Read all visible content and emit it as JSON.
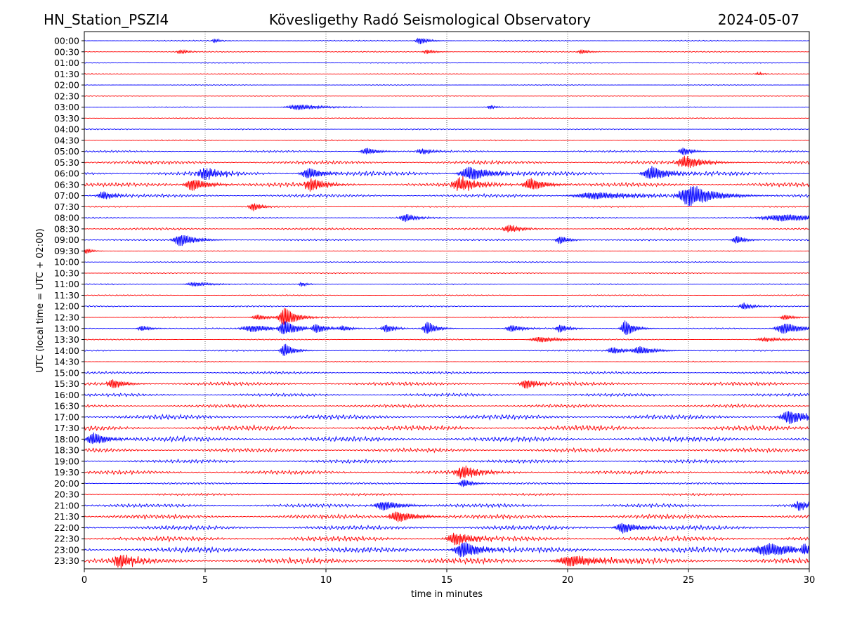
{
  "chart_data": {
    "type": "line",
    "title_left": "HN_Station_PSZI4",
    "title_center": "Kövesligethy Radó Seismological Observatory",
    "title_right": "2024-05-07",
    "xlabel": "time in minutes",
    "ylabel": "UTC (local time = UTC + 02:00)",
    "xlim": [
      0,
      30
    ],
    "xticks": [
      "0",
      "5",
      "10",
      "15",
      "20",
      "25",
      "30"
    ],
    "grid": "vertical dotted at every 5 minutes",
    "colors": {
      "even_trace": "#0000ff",
      "odd_trace": "#ff0000",
      "grid": "#000000"
    },
    "rows": [
      {
        "label": "00:00",
        "noise": 0.8,
        "events": [
          {
            "t": 13.9,
            "amp": 5,
            "dur": 0.3
          },
          {
            "t": 5.4,
            "amp": 3,
            "dur": 0.2
          }
        ]
      },
      {
        "label": "00:30",
        "noise": 0.8,
        "events": [
          {
            "t": 4.0,
            "amp": 3,
            "dur": 0.3
          },
          {
            "t": 14.2,
            "amp": 3,
            "dur": 0.3
          },
          {
            "t": 20.6,
            "amp": 3,
            "dur": 0.3
          }
        ]
      },
      {
        "label": "01:00",
        "noise": 0.7,
        "events": []
      },
      {
        "label": "01:30",
        "noise": 0.7,
        "events": [
          {
            "t": 27.9,
            "amp": 2,
            "dur": 0.2
          }
        ]
      },
      {
        "label": "02:00",
        "noise": 0.6,
        "events": []
      },
      {
        "label": "02:30",
        "noise": 0.5,
        "events": []
      },
      {
        "label": "03:00",
        "noise": 0.6,
        "events": [
          {
            "t": 8.9,
            "amp": 4,
            "dur": 0.8
          },
          {
            "t": 16.8,
            "amp": 3,
            "dur": 0.2
          }
        ]
      },
      {
        "label": "03:30",
        "noise": 0.7,
        "events": []
      },
      {
        "label": "04:00",
        "noise": 0.9,
        "events": []
      },
      {
        "label": "04:30",
        "noise": 0.9,
        "events": []
      },
      {
        "label": "05:00",
        "noise": 1.4,
        "events": [
          {
            "t": 11.7,
            "amp": 5,
            "dur": 0.4
          },
          {
            "t": 14.0,
            "amp": 4,
            "dur": 0.4
          },
          {
            "t": 24.8,
            "amp": 6,
            "dur": 0.3
          }
        ]
      },
      {
        "label": "05:30",
        "noise": 2.6,
        "events": [
          {
            "t": 24.9,
            "amp": 9,
            "dur": 0.6
          }
        ]
      },
      {
        "label": "06:00",
        "noise": 3.2,
        "events": [
          {
            "t": 5.0,
            "amp": 9,
            "dur": 0.5
          },
          {
            "t": 9.3,
            "amp": 8,
            "dur": 0.5
          },
          {
            "t": 16.0,
            "amp": 10,
            "dur": 0.7
          },
          {
            "t": 23.5,
            "amp": 10,
            "dur": 0.6
          }
        ]
      },
      {
        "label": "06:30",
        "noise": 3.0,
        "events": [
          {
            "t": 4.5,
            "amp": 9,
            "dur": 0.5
          },
          {
            "t": 9.4,
            "amp": 9,
            "dur": 0.5
          },
          {
            "t": 15.6,
            "amp": 10,
            "dur": 0.6
          },
          {
            "t": 18.5,
            "amp": 9,
            "dur": 0.5
          }
        ]
      },
      {
        "label": "07:00",
        "noise": 2.4,
        "events": [
          {
            "t": 0.8,
            "amp": 6,
            "dur": 0.4
          },
          {
            "t": 25.1,
            "amp": 16,
            "dur": 0.8
          },
          {
            "t": 21.2,
            "amp": 5,
            "dur": 1.5
          }
        ]
      },
      {
        "label": "07:30",
        "noise": 0.9,
        "events": [
          {
            "t": 7.0,
            "amp": 6,
            "dur": 0.3
          }
        ]
      },
      {
        "label": "08:00",
        "noise": 1.0,
        "events": [
          {
            "t": 13.3,
            "amp": 6,
            "dur": 0.4
          },
          {
            "t": 29.0,
            "amp": 5,
            "dur": 1.6
          }
        ]
      },
      {
        "label": "08:30",
        "noise": 1.6,
        "events": [
          {
            "t": 17.6,
            "amp": 6,
            "dur": 0.4
          }
        ]
      },
      {
        "label": "09:00",
        "noise": 1.2,
        "events": [
          {
            "t": 4.0,
            "amp": 9,
            "dur": 0.5
          },
          {
            "t": 19.7,
            "amp": 6,
            "dur": 0.3
          },
          {
            "t": 27.0,
            "amp": 6,
            "dur": 0.3
          }
        ]
      },
      {
        "label": "09:30",
        "noise": 0.6,
        "events": [
          {
            "t": 0.1,
            "amp": 4,
            "dur": 0.2
          }
        ]
      },
      {
        "label": "10:00",
        "noise": 0.8,
        "events": []
      },
      {
        "label": "10:30",
        "noise": 0.8,
        "events": []
      },
      {
        "label": "11:00",
        "noise": 0.8,
        "events": [
          {
            "t": 4.6,
            "amp": 3,
            "dur": 0.6
          },
          {
            "t": 9.0,
            "amp": 3,
            "dur": 0.2
          }
        ]
      },
      {
        "label": "11:30",
        "noise": 0.8,
        "events": []
      },
      {
        "label": "12:00",
        "noise": 1.0,
        "events": [
          {
            "t": 27.3,
            "amp": 5,
            "dur": 0.3
          }
        ]
      },
      {
        "label": "12:30",
        "noise": 1.0,
        "events": [
          {
            "t": 8.3,
            "amp": 14,
            "dur": 0.4
          },
          {
            "t": 7.2,
            "amp": 4,
            "dur": 0.4
          },
          {
            "t": 29.0,
            "amp": 4,
            "dur": 0.3
          }
        ]
      },
      {
        "label": "13:00",
        "noise": 0.9,
        "events": [
          {
            "t": 8.3,
            "amp": 12,
            "dur": 0.5
          },
          {
            "t": 9.6,
            "amp": 8,
            "dur": 0.4
          },
          {
            "t": 12.5,
            "amp": 6,
            "dur": 0.3
          },
          {
            "t": 14.2,
            "amp": 10,
            "dur": 0.3
          },
          {
            "t": 17.7,
            "amp": 5,
            "dur": 0.4
          },
          {
            "t": 19.7,
            "amp": 6,
            "dur": 0.3
          },
          {
            "t": 22.4,
            "amp": 12,
            "dur": 0.3
          },
          {
            "t": 29.0,
            "amp": 8,
            "dur": 0.6
          },
          {
            "t": 2.4,
            "amp": 4,
            "dur": 0.3
          },
          {
            "t": 7.0,
            "amp": 5,
            "dur": 0.8
          },
          {
            "t": 10.7,
            "amp": 4,
            "dur": 0.3
          }
        ]
      },
      {
        "label": "13:30",
        "noise": 0.8,
        "events": [
          {
            "t": 18.9,
            "amp": 4,
            "dur": 0.7
          },
          {
            "t": 28.2,
            "amp": 3,
            "dur": 0.6
          }
        ]
      },
      {
        "label": "14:00",
        "noise": 1.0,
        "events": [
          {
            "t": 8.3,
            "amp": 10,
            "dur": 0.3
          },
          {
            "t": 23.0,
            "amp": 6,
            "dur": 0.5
          },
          {
            "t": 21.9,
            "amp": 5,
            "dur": 0.4
          }
        ]
      },
      {
        "label": "14:30",
        "noise": 0.8,
        "events": []
      },
      {
        "label": "15:00",
        "noise": 1.7,
        "events": []
      },
      {
        "label": "15:30",
        "noise": 2.6,
        "events": [
          {
            "t": 1.2,
            "amp": 7,
            "dur": 0.4
          },
          {
            "t": 18.3,
            "amp": 7,
            "dur": 0.4
          }
        ]
      },
      {
        "label": "16:00",
        "noise": 2.2,
        "events": []
      },
      {
        "label": "16:30",
        "noise": 2.4,
        "events": []
      },
      {
        "label": "17:00",
        "noise": 3.4,
        "events": [
          {
            "t": 29.2,
            "amp": 10,
            "dur": 0.6
          }
        ]
      },
      {
        "label": "17:30",
        "noise": 3.6,
        "events": []
      },
      {
        "label": "18:00",
        "noise": 3.6,
        "events": [
          {
            "t": 0.4,
            "amp": 9,
            "dur": 0.5
          }
        ]
      },
      {
        "label": "18:30",
        "noise": 3.0,
        "events": []
      },
      {
        "label": "19:00",
        "noise": 2.6,
        "events": []
      },
      {
        "label": "19:30",
        "noise": 2.8,
        "events": [
          {
            "t": 15.7,
            "amp": 9,
            "dur": 0.6
          }
        ]
      },
      {
        "label": "20:00",
        "noise": 1.4,
        "events": [
          {
            "t": 15.7,
            "amp": 6,
            "dur": 0.3
          }
        ]
      },
      {
        "label": "20:30",
        "noise": 1.6,
        "events": []
      },
      {
        "label": "21:00",
        "noise": 2.6,
        "events": [
          {
            "t": 12.4,
            "amp": 7,
            "dur": 0.6
          },
          {
            "t": 29.6,
            "amp": 7,
            "dur": 0.4
          }
        ]
      },
      {
        "label": "21:30",
        "noise": 3.2,
        "events": [
          {
            "t": 13.0,
            "amp": 8,
            "dur": 0.6
          }
        ]
      },
      {
        "label": "22:00",
        "noise": 3.2,
        "events": [
          {
            "t": 22.3,
            "amp": 8,
            "dur": 0.5
          }
        ]
      },
      {
        "label": "22:30",
        "noise": 3.6,
        "events": [
          {
            "t": 15.4,
            "amp": 9,
            "dur": 0.6
          }
        ]
      },
      {
        "label": "23:00",
        "noise": 4.0,
        "events": [
          {
            "t": 15.7,
            "amp": 12,
            "dur": 0.6
          },
          {
            "t": 28.4,
            "amp": 9,
            "dur": 1.2
          },
          {
            "t": 29.8,
            "amp": 12,
            "dur": 0.4
          }
        ]
      },
      {
        "label": "23:30",
        "noise": 4.2,
        "events": [
          {
            "t": 1.5,
            "amp": 10,
            "dur": 0.5
          },
          {
            "t": 20.2,
            "amp": 8,
            "dur": 1.0
          }
        ]
      }
    ]
  }
}
